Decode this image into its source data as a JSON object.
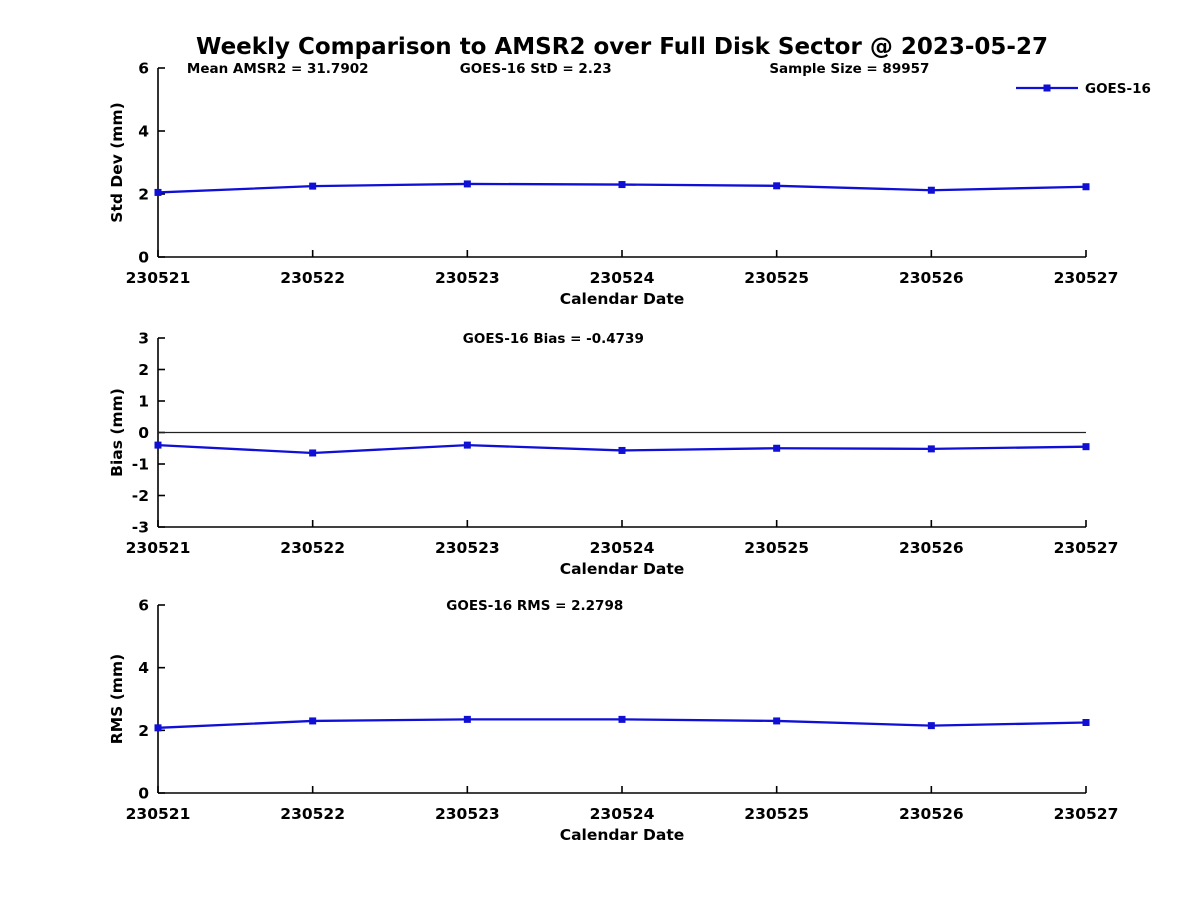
{
  "title": "Weekly Comparison to AMSR2 over Full Disk Sector @ 2023-05-27",
  "series_color": "#0f0fd6",
  "axis_color": "#000000",
  "chart_data": [
    {
      "type": "line",
      "panel": "std-dev",
      "title_annotations": [
        {
          "text": "Mean AMSR2 = 31.7902",
          "xfrac": 0.129
        },
        {
          "text": "GOES-16 StD = 2.23",
          "xfrac": 0.407
        },
        {
          "text": "Sample Size = 89957",
          "xfrac": 0.745
        }
      ],
      "categories": [
        "230521",
        "230522",
        "230523",
        "230524",
        "230525",
        "230526",
        "230527"
      ],
      "series": [
        {
          "name": "GOES-16",
          "values": [
            2.05,
            2.25,
            2.32,
            2.3,
            2.26,
            2.12,
            2.23
          ]
        }
      ],
      "xlabel": "Calendar Date",
      "ylabel": "Std Dev (mm)",
      "ylim": [
        0,
        6
      ],
      "yticks": [
        0,
        2,
        4,
        6
      ],
      "zero_line": false,
      "legend": {
        "entries": [
          "GOES-16"
        ],
        "position": "top-right-outside"
      }
    },
    {
      "type": "line",
      "panel": "bias",
      "title_annotations": [
        {
          "text": "GOES-16 Bias  = -0.4739",
          "xfrac": 0.426
        }
      ],
      "categories": [
        "230521",
        "230522",
        "230523",
        "230524",
        "230525",
        "230526",
        "230527"
      ],
      "series": [
        {
          "name": "GOES-16",
          "values": [
            -0.4,
            -0.65,
            -0.4,
            -0.57,
            -0.5,
            -0.52,
            -0.45
          ]
        }
      ],
      "xlabel": "Calendar Date",
      "ylabel": "Bias (mm)",
      "ylim": [
        -3,
        3
      ],
      "yticks": [
        3,
        2,
        1,
        0,
        -1,
        -2,
        -3
      ],
      "zero_line": true,
      "legend": null
    },
    {
      "type": "line",
      "panel": "rms",
      "title_annotations": [
        {
          "text": "GOES-16 RMS = 2.2798",
          "xfrac": 0.406
        }
      ],
      "categories": [
        "230521",
        "230522",
        "230523",
        "230524",
        "230525",
        "230526",
        "230527"
      ],
      "series": [
        {
          "name": "GOES-16",
          "values": [
            2.08,
            2.3,
            2.35,
            2.35,
            2.3,
            2.15,
            2.25
          ]
        }
      ],
      "xlabel": "Calendar Date",
      "ylabel": "RMS (mm)",
      "ylim": [
        0,
        6
      ],
      "yticks": [
        0,
        2,
        4,
        6
      ],
      "zero_line": false,
      "legend": null
    }
  ]
}
